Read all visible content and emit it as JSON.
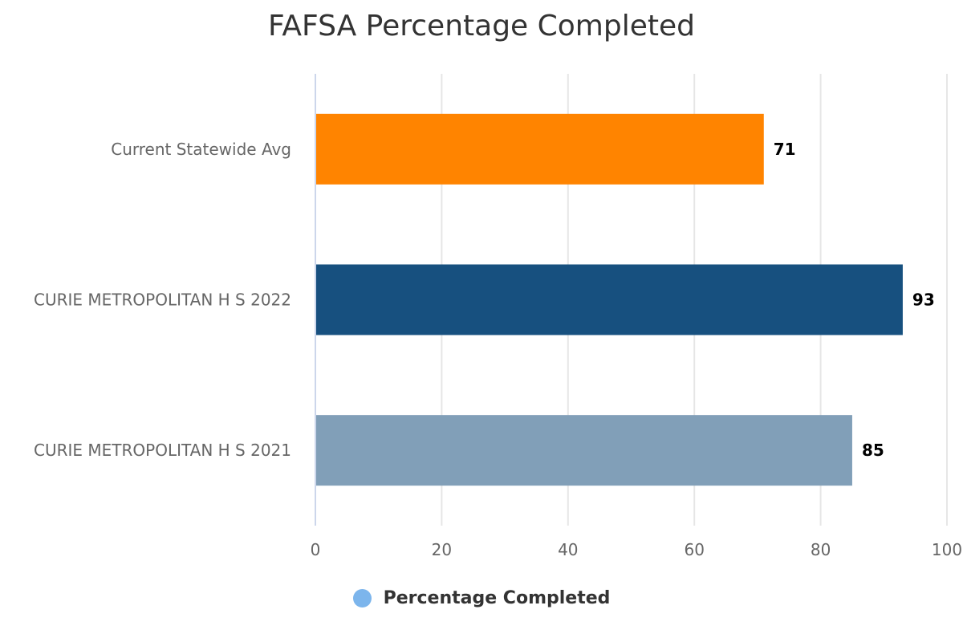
{
  "chart_data": {
    "type": "bar",
    "orientation": "horizontal",
    "title": "FAFSA Percentage Completed",
    "categories": [
      "Current Statewide Avg",
      "CURIE METROPOLITAN H S 2022",
      "CURIE METROPOLITAN H S 2021"
    ],
    "series": [
      {
        "name": "Percentage Completed",
        "values": [
          71,
          93,
          85
        ],
        "colors": [
          "#ff8400",
          "#17507f",
          "#819fb8"
        ]
      }
    ],
    "xlim": [
      0,
      100
    ],
    "x_ticks": [
      0,
      20,
      40,
      60,
      80,
      100
    ],
    "grid": true,
    "data_labels": true,
    "legend": {
      "placement": "bottom-center",
      "marker_color": "#7cb5ec"
    }
  }
}
